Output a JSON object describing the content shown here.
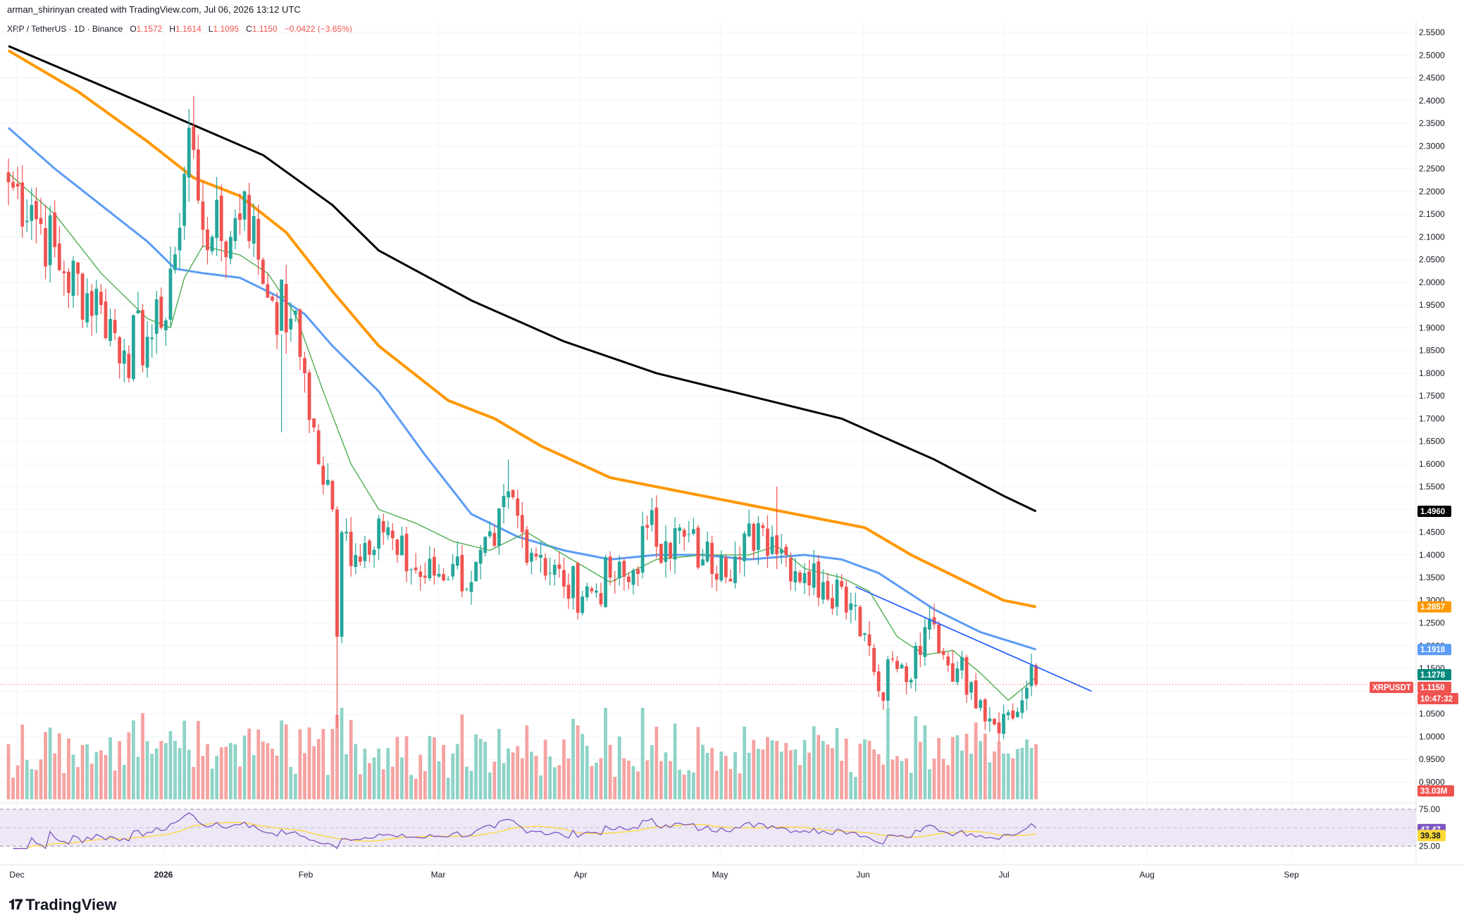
{
  "header": {
    "attribution": "arman_shirinyan created with TradingView.com, Jul 06, 2026 13:12 UTC"
  },
  "legend": {
    "symbol": "XRP / TetherUS · 1D · Binance",
    "open_label": "O",
    "open": "1.1572",
    "high_label": "H",
    "high": "1.1614",
    "low_label": "L",
    "low": "1.1095",
    "close_label": "C",
    "close": "1.1150",
    "change": "−0.0422 (−3.65%)"
  },
  "brand": {
    "name": "TradingView",
    "logo_icon": "tradingview-logo-icon"
  },
  "colors": {
    "up": "#26a69a",
    "down": "#ef5350",
    "ma_fast": "#4caf50",
    "ma_mid": "#5b9cf6",
    "ma_slow": "#ff9800",
    "ma_long": "#000000",
    "trendline": "#2962ff",
    "rsi": "#7e57c2",
    "rsi_ma": "#fdd835",
    "rsi_band": "#ede7f6"
  },
  "chart_data": {
    "type": "candlestick",
    "x_axis_labels": [
      "Dec",
      "2026",
      "Feb",
      "Mar",
      "Apr",
      "May",
      "Jun",
      "Jul",
      "Aug",
      "Sep"
    ],
    "y_ticks": [
      "0.9000",
      "0.9500",
      "1.0000",
      "1.0500",
      "1.1000",
      "1.1500",
      "1.2000",
      "1.2500",
      "1.3000",
      "1.3500",
      "1.4000",
      "1.4500",
      "1.5000",
      "1.5500",
      "1.6000",
      "1.6500",
      "1.7000",
      "1.7500",
      "1.8000",
      "1.8500",
      "1.9000",
      "1.9500",
      "2.0000",
      "2.0500",
      "2.1000",
      "2.1500",
      "2.2000",
      "2.2500",
      "2.3000",
      "2.3500",
      "2.4000",
      "2.4500",
      "2.5000",
      "2.5500"
    ],
    "ylim": [
      0.9,
      2.57
    ],
    "anchors": [
      {
        "i": 0,
        "c": 2.22
      },
      {
        "i": 5,
        "c": 2.17
      },
      {
        "i": 12,
        "c": 2.02
      },
      {
        "i": 20,
        "c": 1.95
      },
      {
        "i": 25,
        "c": 1.85
      },
      {
        "i": 30,
        "c": 1.88
      },
      {
        "i": 33,
        "c": 1.9
      },
      {
        "i": 35,
        "c": 2.03
      },
      {
        "i": 37,
        "c": 2.12
      },
      {
        "i": 39,
        "c": 2.34
      },
      {
        "i": 41,
        "c": 2.18
      },
      {
        "i": 44,
        "c": 2.1
      },
      {
        "i": 48,
        "c": 2.1
      },
      {
        "i": 51,
        "c": 2.2
      },
      {
        "i": 54,
        "c": 2.05
      },
      {
        "i": 57,
        "c": 1.96
      },
      {
        "i": 61,
        "c": 1.92
      },
      {
        "i": 64,
        "c": 1.8
      },
      {
        "i": 67,
        "c": 1.6
      },
      {
        "i": 70,
        "c": 1.5
      },
      {
        "i": 71,
        "c": 1.22
      },
      {
        "i": 72,
        "c": 1.45
      },
      {
        "i": 75,
        "c": 1.4
      },
      {
        "i": 80,
        "c": 1.48
      },
      {
        "i": 84,
        "c": 1.4
      },
      {
        "i": 90,
        "c": 1.35
      },
      {
        "i": 96,
        "c": 1.38
      },
      {
        "i": 100,
        "c": 1.34
      },
      {
        "i": 105,
        "c": 1.42
      },
      {
        "i": 108,
        "c": 1.54
      },
      {
        "i": 111,
        "c": 1.45
      },
      {
        "i": 115,
        "c": 1.4
      },
      {
        "i": 120,
        "c": 1.33
      },
      {
        "i": 126,
        "c": 1.32
      },
      {
        "i": 130,
        "c": 1.35
      },
      {
        "i": 134,
        "c": 1.34
      },
      {
        "i": 138,
        "c": 1.46
      },
      {
        "i": 142,
        "c": 1.43
      },
      {
        "i": 146,
        "c": 1.44
      },
      {
        "i": 150,
        "c": 1.39
      },
      {
        "i": 154,
        "c": 1.4
      },
      {
        "i": 158,
        "c": 1.39
      },
      {
        "i": 162,
        "c": 1.47
      },
      {
        "i": 165,
        "c": 1.44
      },
      {
        "i": 168,
        "c": 1.4
      },
      {
        "i": 172,
        "c": 1.36
      },
      {
        "i": 176,
        "c": 1.34
      },
      {
        "i": 180,
        "c": 1.33
      },
      {
        "i": 183,
        "c": 1.29
      },
      {
        "i": 186,
        "c": 1.2
      },
      {
        "i": 188,
        "c": 1.1
      },
      {
        "i": 191,
        "c": 1.17
      },
      {
        "i": 194,
        "c": 1.12
      },
      {
        "i": 197,
        "c": 1.18
      },
      {
        "i": 199,
        "c": 1.26
      },
      {
        "i": 202,
        "c": 1.18
      },
      {
        "i": 205,
        "c": 1.15
      },
      {
        "i": 208,
        "c": 1.12
      },
      {
        "i": 210,
        "c": 1.08
      },
      {
        "i": 212,
        "c": 1.04
      },
      {
        "i": 215,
        "c": 1.05
      },
      {
        "i": 217,
        "c": 1.04
      },
      {
        "i": 219,
        "c": 1.08
      },
      {
        "i": 221,
        "c": 1.157
      },
      {
        "i": 222,
        "c": 1.115
      }
    ],
    "moving_averages": [
      {
        "color": "#000000",
        "width": 3,
        "points": [
          [
            0,
            2.52
          ],
          [
            30,
            2.39
          ],
          [
            55,
            2.28
          ],
          [
            70,
            2.17
          ],
          [
            80,
            2.07
          ],
          [
            100,
            1.96
          ],
          [
            120,
            1.87
          ],
          [
            140,
            1.8
          ],
          [
            160,
            1.75
          ],
          [
            180,
            1.7
          ],
          [
            200,
            1.61
          ],
          [
            215,
            1.53
          ],
          [
            222,
            1.496
          ]
        ]
      },
      {
        "color": "#ff9800",
        "width": 4,
        "points": [
          [
            0,
            2.51
          ],
          [
            15,
            2.42
          ],
          [
            30,
            2.31
          ],
          [
            40,
            2.23
          ],
          [
            50,
            2.19
          ],
          [
            60,
            2.11
          ],
          [
            70,
            1.98
          ],
          [
            80,
            1.86
          ],
          [
            95,
            1.74
          ],
          [
            105,
            1.7
          ],
          [
            115,
            1.64
          ],
          [
            130,
            1.57
          ],
          [
            140,
            1.55
          ],
          [
            160,
            1.51
          ],
          [
            170,
            1.49
          ],
          [
            185,
            1.46
          ],
          [
            195,
            1.4
          ],
          [
            205,
            1.35
          ],
          [
            215,
            1.3
          ],
          [
            222,
            1.2857
          ]
        ]
      },
      {
        "color": "#5b9cf6",
        "width": 3,
        "points": [
          [
            0,
            2.34
          ],
          [
            10,
            2.25
          ],
          [
            20,
            2.17
          ],
          [
            30,
            2.09
          ],
          [
            36,
            2.03
          ],
          [
            42,
            2.02
          ],
          [
            50,
            2.01
          ],
          [
            58,
            1.97
          ],
          [
            64,
            1.93
          ],
          [
            70,
            1.86
          ],
          [
            80,
            1.76
          ],
          [
            90,
            1.62
          ],
          [
            100,
            1.49
          ],
          [
            110,
            1.44
          ],
          [
            120,
            1.41
          ],
          [
            130,
            1.39
          ],
          [
            140,
            1.4
          ],
          [
            150,
            1.4
          ],
          [
            160,
            1.39
          ],
          [
            172,
            1.4
          ],
          [
            180,
            1.39
          ],
          [
            188,
            1.36
          ],
          [
            200,
            1.28
          ],
          [
            210,
            1.23
          ],
          [
            222,
            1.1918
          ]
        ]
      },
      {
        "color": "#4caf50",
        "width": 1.4,
        "points": [
          [
            0,
            2.24
          ],
          [
            10,
            2.15
          ],
          [
            20,
            2.02
          ],
          [
            30,
            1.92
          ],
          [
            35,
            1.9
          ],
          [
            38,
            2.01
          ],
          [
            42,
            2.08
          ],
          [
            50,
            2.06
          ],
          [
            56,
            2.02
          ],
          [
            62,
            1.93
          ],
          [
            68,
            1.76
          ],
          [
            74,
            1.6
          ],
          [
            80,
            1.5
          ],
          [
            88,
            1.47
          ],
          [
            96,
            1.43
          ],
          [
            104,
            1.41
          ],
          [
            112,
            1.45
          ],
          [
            120,
            1.4
          ],
          [
            130,
            1.34
          ],
          [
            140,
            1.39
          ],
          [
            150,
            1.4
          ],
          [
            160,
            1.4
          ],
          [
            166,
            1.42
          ],
          [
            172,
            1.37
          ],
          [
            180,
            1.35
          ],
          [
            186,
            1.32
          ],
          [
            192,
            1.22
          ],
          [
            198,
            1.18
          ],
          [
            204,
            1.19
          ],
          [
            210,
            1.14
          ],
          [
            216,
            1.08
          ],
          [
            222,
            1.13
          ]
        ]
      }
    ],
    "trendline": {
      "color": "#2962ff",
      "from": [
        183,
        1.33
      ],
      "to": [
        234,
        1.1
      ]
    },
    "price_line": 1.115,
    "price_badges": [
      {
        "value": 1.496,
        "text": "1.4960",
        "bg": "#000000"
      },
      {
        "value": 1.2857,
        "text": "1.2857",
        "bg": "#ff9800"
      },
      {
        "value": 1.1918,
        "text": "1.1918",
        "bg": "#5b9cf6"
      },
      {
        "value": 1.1278,
        "text": "1.1278",
        "bg": "#00897b"
      },
      {
        "value": 1.115,
        "text": "1.1150",
        "bg": "#ef5350"
      }
    ],
    "symbol_badge": "XRPUSDT",
    "countdown": "10:47:32",
    "volume_badge": "33.03M",
    "rsi": {
      "ticks": [
        "75.00",
        "25.00"
      ],
      "value": "47.47",
      "ma_value": "39.38",
      "ylim": [
        20,
        80
      ]
    }
  }
}
